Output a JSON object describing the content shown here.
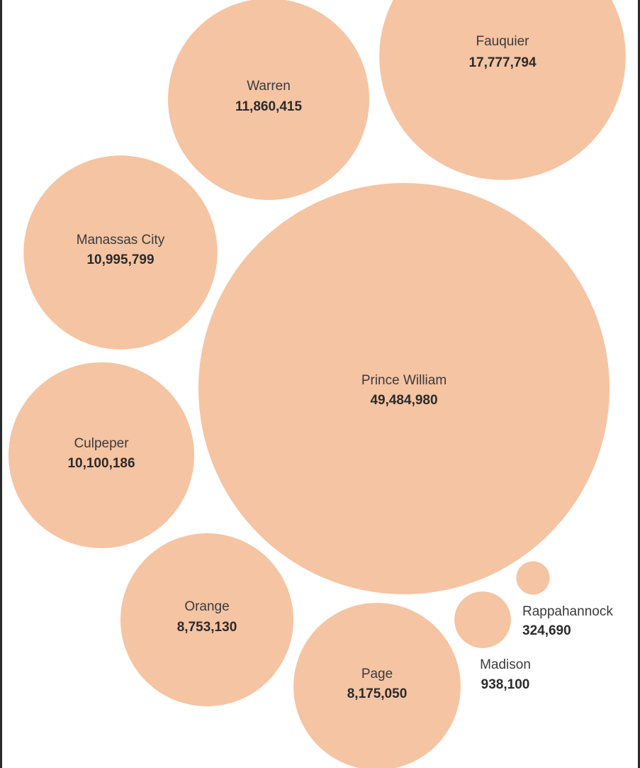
{
  "header": {
    "title_fragment": ""
  },
  "chart_data": {
    "type": "bubble",
    "bubble_color": "#f5c4a2",
    "text_color": "#2b2b2b",
    "grid": false,
    "legend": "none",
    "series": [
      {
        "name": "Fauquier",
        "value": 17777794
      },
      {
        "name": "Warren",
        "value": 11860415
      },
      {
        "name": "Manassas City",
        "value": 10995799
      },
      {
        "name": "Prince William",
        "value": 49484980
      },
      {
        "name": "Culpeper",
        "value": 10100186
      },
      {
        "name": "Orange",
        "value": 8753130
      },
      {
        "name": "Page",
        "value": 8175050
      },
      {
        "name": "Madison",
        "value": 938100
      },
      {
        "name": "Rappahannock",
        "value": 324690
      }
    ]
  }
}
